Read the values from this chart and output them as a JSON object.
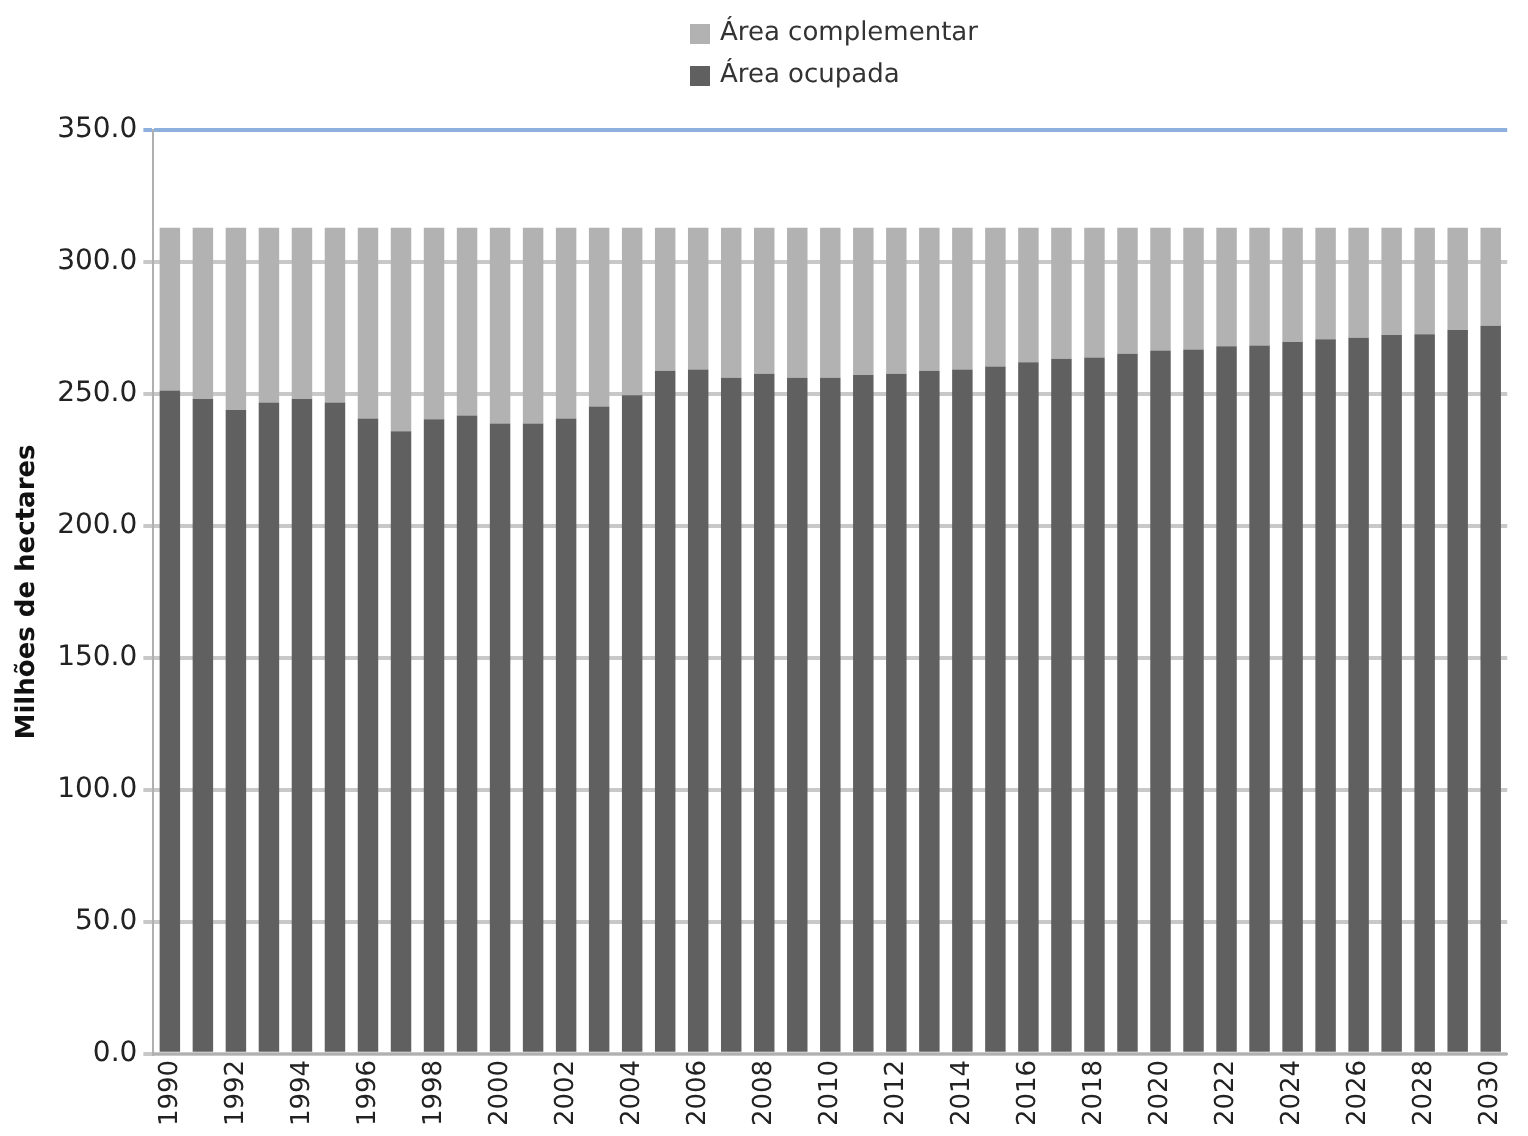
{
  "chart_data": {
    "type": "bar",
    "stacked": true,
    "ylabel": "Milhões de hectares",
    "categories": [
      "1990",
      null,
      "1992",
      null,
      "1994",
      null,
      "1996",
      null,
      "1998",
      null,
      "2000",
      null,
      "2002",
      null,
      "2004",
      null,
      "2006",
      null,
      "2008",
      null,
      "2010",
      null,
      "2012",
      null,
      "2014",
      null,
      "2016",
      null,
      "2018",
      null,
      "2020",
      null,
      "2022",
      null,
      "2024",
      null,
      "2026",
      null,
      "2028",
      null,
      "2030"
    ],
    "series": [
      {
        "name": "Área ocupada",
        "color": "#606060",
        "values": [
          251.3,
          248.1,
          243.9,
          246.8,
          248.1,
          246.8,
          240.7,
          235.9,
          240.4,
          241.8,
          238.8,
          238.8,
          240.7,
          245.2,
          249.5,
          258.8,
          259.3,
          256.1,
          257.7,
          256.1,
          256.1,
          257.2,
          257.7,
          258.8,
          259.3,
          260.4,
          262.0,
          263.3,
          263.8,
          265.2,
          266.5,
          266.8,
          268.1,
          268.4,
          269.7,
          270.7,
          271.3,
          272.3,
          272.6,
          274.2,
          275.8
        ]
      },
      {
        "name": "Área complementar",
        "color": "#b2b2b2",
        "values": [
          61.7,
          64.9,
          69.1,
          66.2,
          64.9,
          66.2,
          72.3,
          77.1,
          72.6,
          71.2,
          74.2,
          74.2,
          72.3,
          67.8,
          63.5,
          54.2,
          53.7,
          56.9,
          55.3,
          56.9,
          56.9,
          55.8,
          55.3,
          54.2,
          53.7,
          52.6,
          51.0,
          49.7,
          49.2,
          47.8,
          46.5,
          46.2,
          44.9,
          44.6,
          43.3,
          42.3,
          41.7,
          40.7,
          40.4,
          38.8,
          37.2
        ]
      }
    ],
    "ylim": [
      0,
      350
    ],
    "yticks": [
      {
        "value": 0,
        "label": "0.0"
      },
      {
        "value": 50,
        "label": "50.0"
      },
      {
        "value": 100,
        "label": "100.0"
      },
      {
        "value": 150,
        "label": "150.0"
      },
      {
        "value": 200,
        "label": "200.0"
      },
      {
        "value": 250,
        "label": "250.0"
      },
      {
        "value": 300,
        "label": "300.0"
      },
      {
        "value": 350,
        "label": "350.0"
      }
    ],
    "grid": "y",
    "legend": "top"
  }
}
